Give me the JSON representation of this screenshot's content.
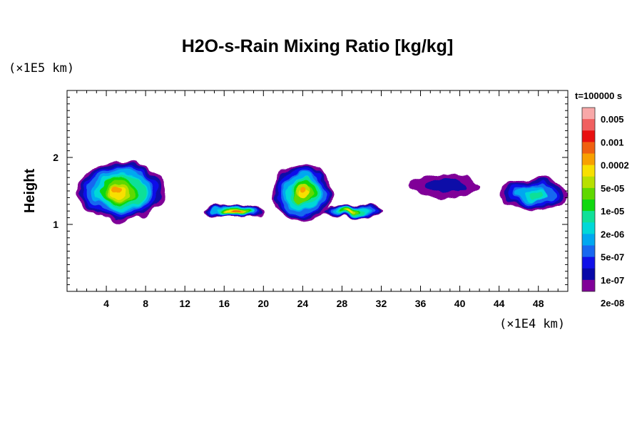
{
  "chart_data": {
    "type": "heatmap",
    "title": "H2O-s-Rain Mixing Ratio [kg/kg]",
    "ylabel": "Height",
    "xlabel": "",
    "y_unit": "(×1E5 km)",
    "x_unit": "(×1E4 km)",
    "time_label": "t=100000 s",
    "xlim": [
      0,
      51
    ],
    "ylim": [
      0,
      3
    ],
    "x_ticks": [
      4,
      8,
      12,
      16,
      20,
      24,
      28,
      32,
      36,
      40,
      44,
      48
    ],
    "y_ticks": [
      1,
      2
    ],
    "colorbar": {
      "labels": [
        "0.005",
        "0.001",
        "0.0002",
        "5e-05",
        "1e-05",
        "2e-06",
        "5e-07",
        "1e-07",
        "2e-08"
      ],
      "colors": [
        "#f8a8a8",
        "#f06060",
        "#e81010",
        "#f06010",
        "#f8a000",
        "#f8e000",
        "#b8e000",
        "#60d800",
        "#10d810",
        "#10e098",
        "#00d8d8",
        "#00a8f0",
        "#1868f0",
        "#1010e8",
        "#0808a8",
        "#800098"
      ]
    },
    "regions": [
      {
        "x": [
          1,
          10
        ],
        "y": [
          1.05,
          1.95
        ],
        "peak_level": 4
      },
      {
        "x": [
          14,
          20
        ],
        "y": [
          1.1,
          1.3
        ],
        "peak_level": 3
      },
      {
        "x": [
          21,
          27
        ],
        "y": [
          1.05,
          1.9
        ],
        "peak_level": 4
      },
      {
        "x": [
          26,
          32
        ],
        "y": [
          1.1,
          1.3
        ],
        "peak_level": 5
      },
      {
        "x": [
          35,
          42
        ],
        "y": [
          1.4,
          1.75
        ],
        "peak_level": 14
      },
      {
        "x": [
          44,
          51
        ],
        "y": [
          1.2,
          1.7
        ],
        "peak_level": 9
      }
    ],
    "grid": false
  }
}
